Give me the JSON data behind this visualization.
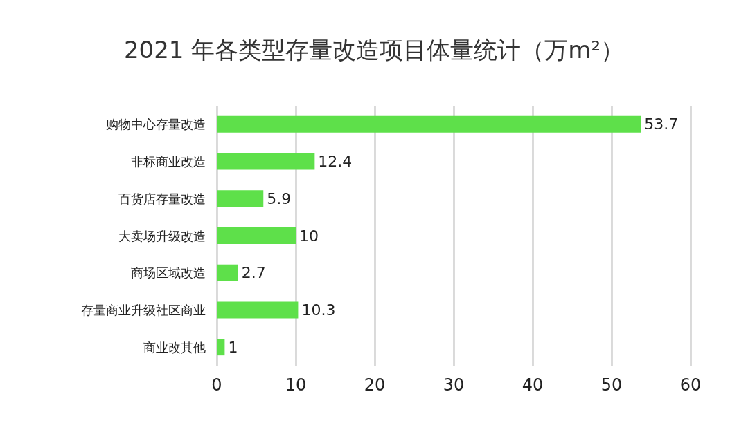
{
  "chart_data": {
    "type": "bar",
    "orientation": "horizontal",
    "title": "2021 年各类型存量改造项目体量统计（万m²）",
    "categories": [
      "购物中心存量改造",
      "非标商业改造",
      "百货店存量改造",
      "大卖场升级改造",
      "商场区域改造",
      "存量商业升级社区商业",
      "商业改其他"
    ],
    "values": [
      53.7,
      12.4,
      5.9,
      10,
      2.7,
      10.3,
      1
    ],
    "color": "#5ee04a",
    "xlim": [
      0,
      60
    ],
    "xticks": [
      0,
      10,
      20,
      30,
      40,
      50,
      60
    ],
    "grid": "x",
    "data_labels": true
  }
}
